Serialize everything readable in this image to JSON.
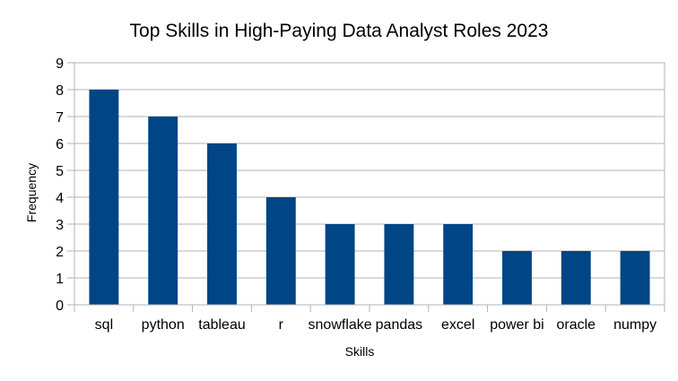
{
  "chart_data": {
    "type": "bar",
    "title": "Top Skills in High-Paying Data Analyst Roles 2023",
    "xlabel": "Skills",
    "ylabel": "Frequency",
    "categories": [
      "sql",
      "python",
      "tableau",
      "r",
      "snowflake",
      "pandas",
      "excel",
      "power bi",
      "oracle",
      "numpy"
    ],
    "values": [
      8,
      7,
      6,
      4,
      3,
      3,
      3,
      2,
      2,
      2
    ],
    "ylim": [
      0,
      9
    ],
    "yticks": [
      "0",
      "1",
      "2",
      "3",
      "4",
      "5",
      "6",
      "7",
      "8",
      "9"
    ],
    "grid": true,
    "legend": "none",
    "bar_color": "#004586",
    "grid_color": "#b3b3b3"
  }
}
